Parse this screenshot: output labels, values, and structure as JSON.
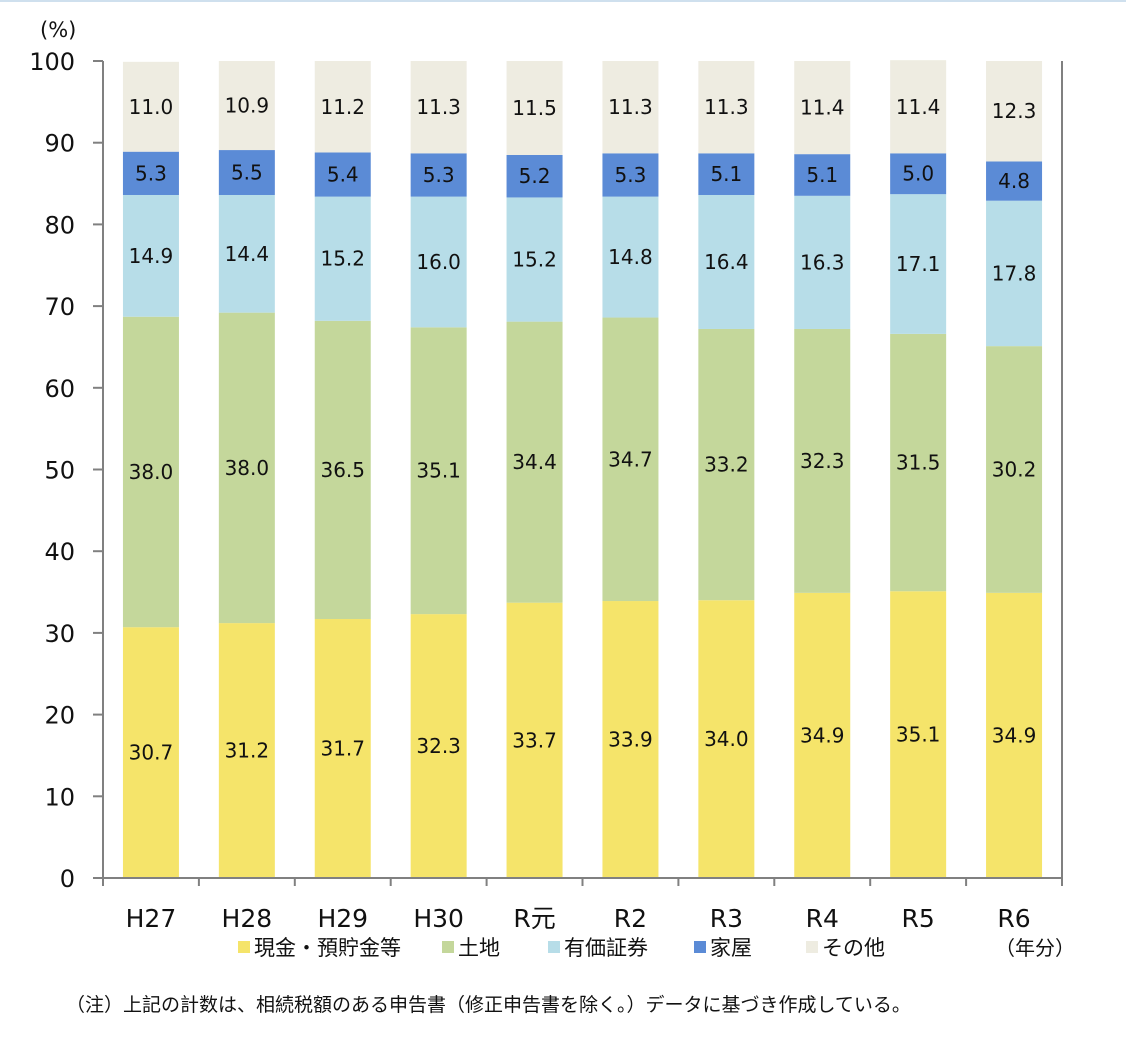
{
  "chart_data": {
    "type": "stacked_bar",
    "unit_label": "(%)",
    "x_unit_label": "（年分）",
    "ylim": [
      0,
      100
    ],
    "yticks": [
      0,
      10,
      20,
      30,
      40,
      50,
      60,
      70,
      80,
      90,
      100
    ],
    "categories": [
      "H27",
      "H28",
      "H29",
      "H30",
      "R元",
      "R2",
      "R3",
      "R4",
      "R5",
      "R6"
    ],
    "series": [
      {
        "name": "現金・預貯金等",
        "color": "#f5e46a",
        "values": [
          30.7,
          31.2,
          31.7,
          32.3,
          33.7,
          33.9,
          34.0,
          34.9,
          35.1,
          34.9
        ]
      },
      {
        "name": "土地",
        "color": "#c4d79b",
        "values": [
          38.0,
          38.0,
          36.5,
          35.1,
          34.4,
          34.7,
          33.2,
          32.3,
          31.5,
          30.2
        ]
      },
      {
        "name": "有価証券",
        "color": "#b7dde8",
        "values": [
          14.9,
          14.4,
          15.2,
          16.0,
          15.2,
          14.8,
          16.4,
          16.3,
          17.1,
          17.8
        ]
      },
      {
        "name": "家屋",
        "color": "#5b8bd6",
        "values": [
          5.3,
          5.5,
          5.4,
          5.3,
          5.2,
          5.3,
          5.1,
          5.1,
          5.0,
          4.8
        ]
      },
      {
        "name": "その他",
        "color": "#eeece1",
        "values": [
          11.0,
          10.9,
          11.2,
          11.3,
          11.5,
          11.3,
          11.3,
          11.4,
          11.4,
          12.3
        ]
      }
    ],
    "legend_position": "bottom",
    "grid": false
  },
  "note": "（注）上記の計数は、相続税額のある申告書（修正申告書を除く。）データに基づき作成している。"
}
